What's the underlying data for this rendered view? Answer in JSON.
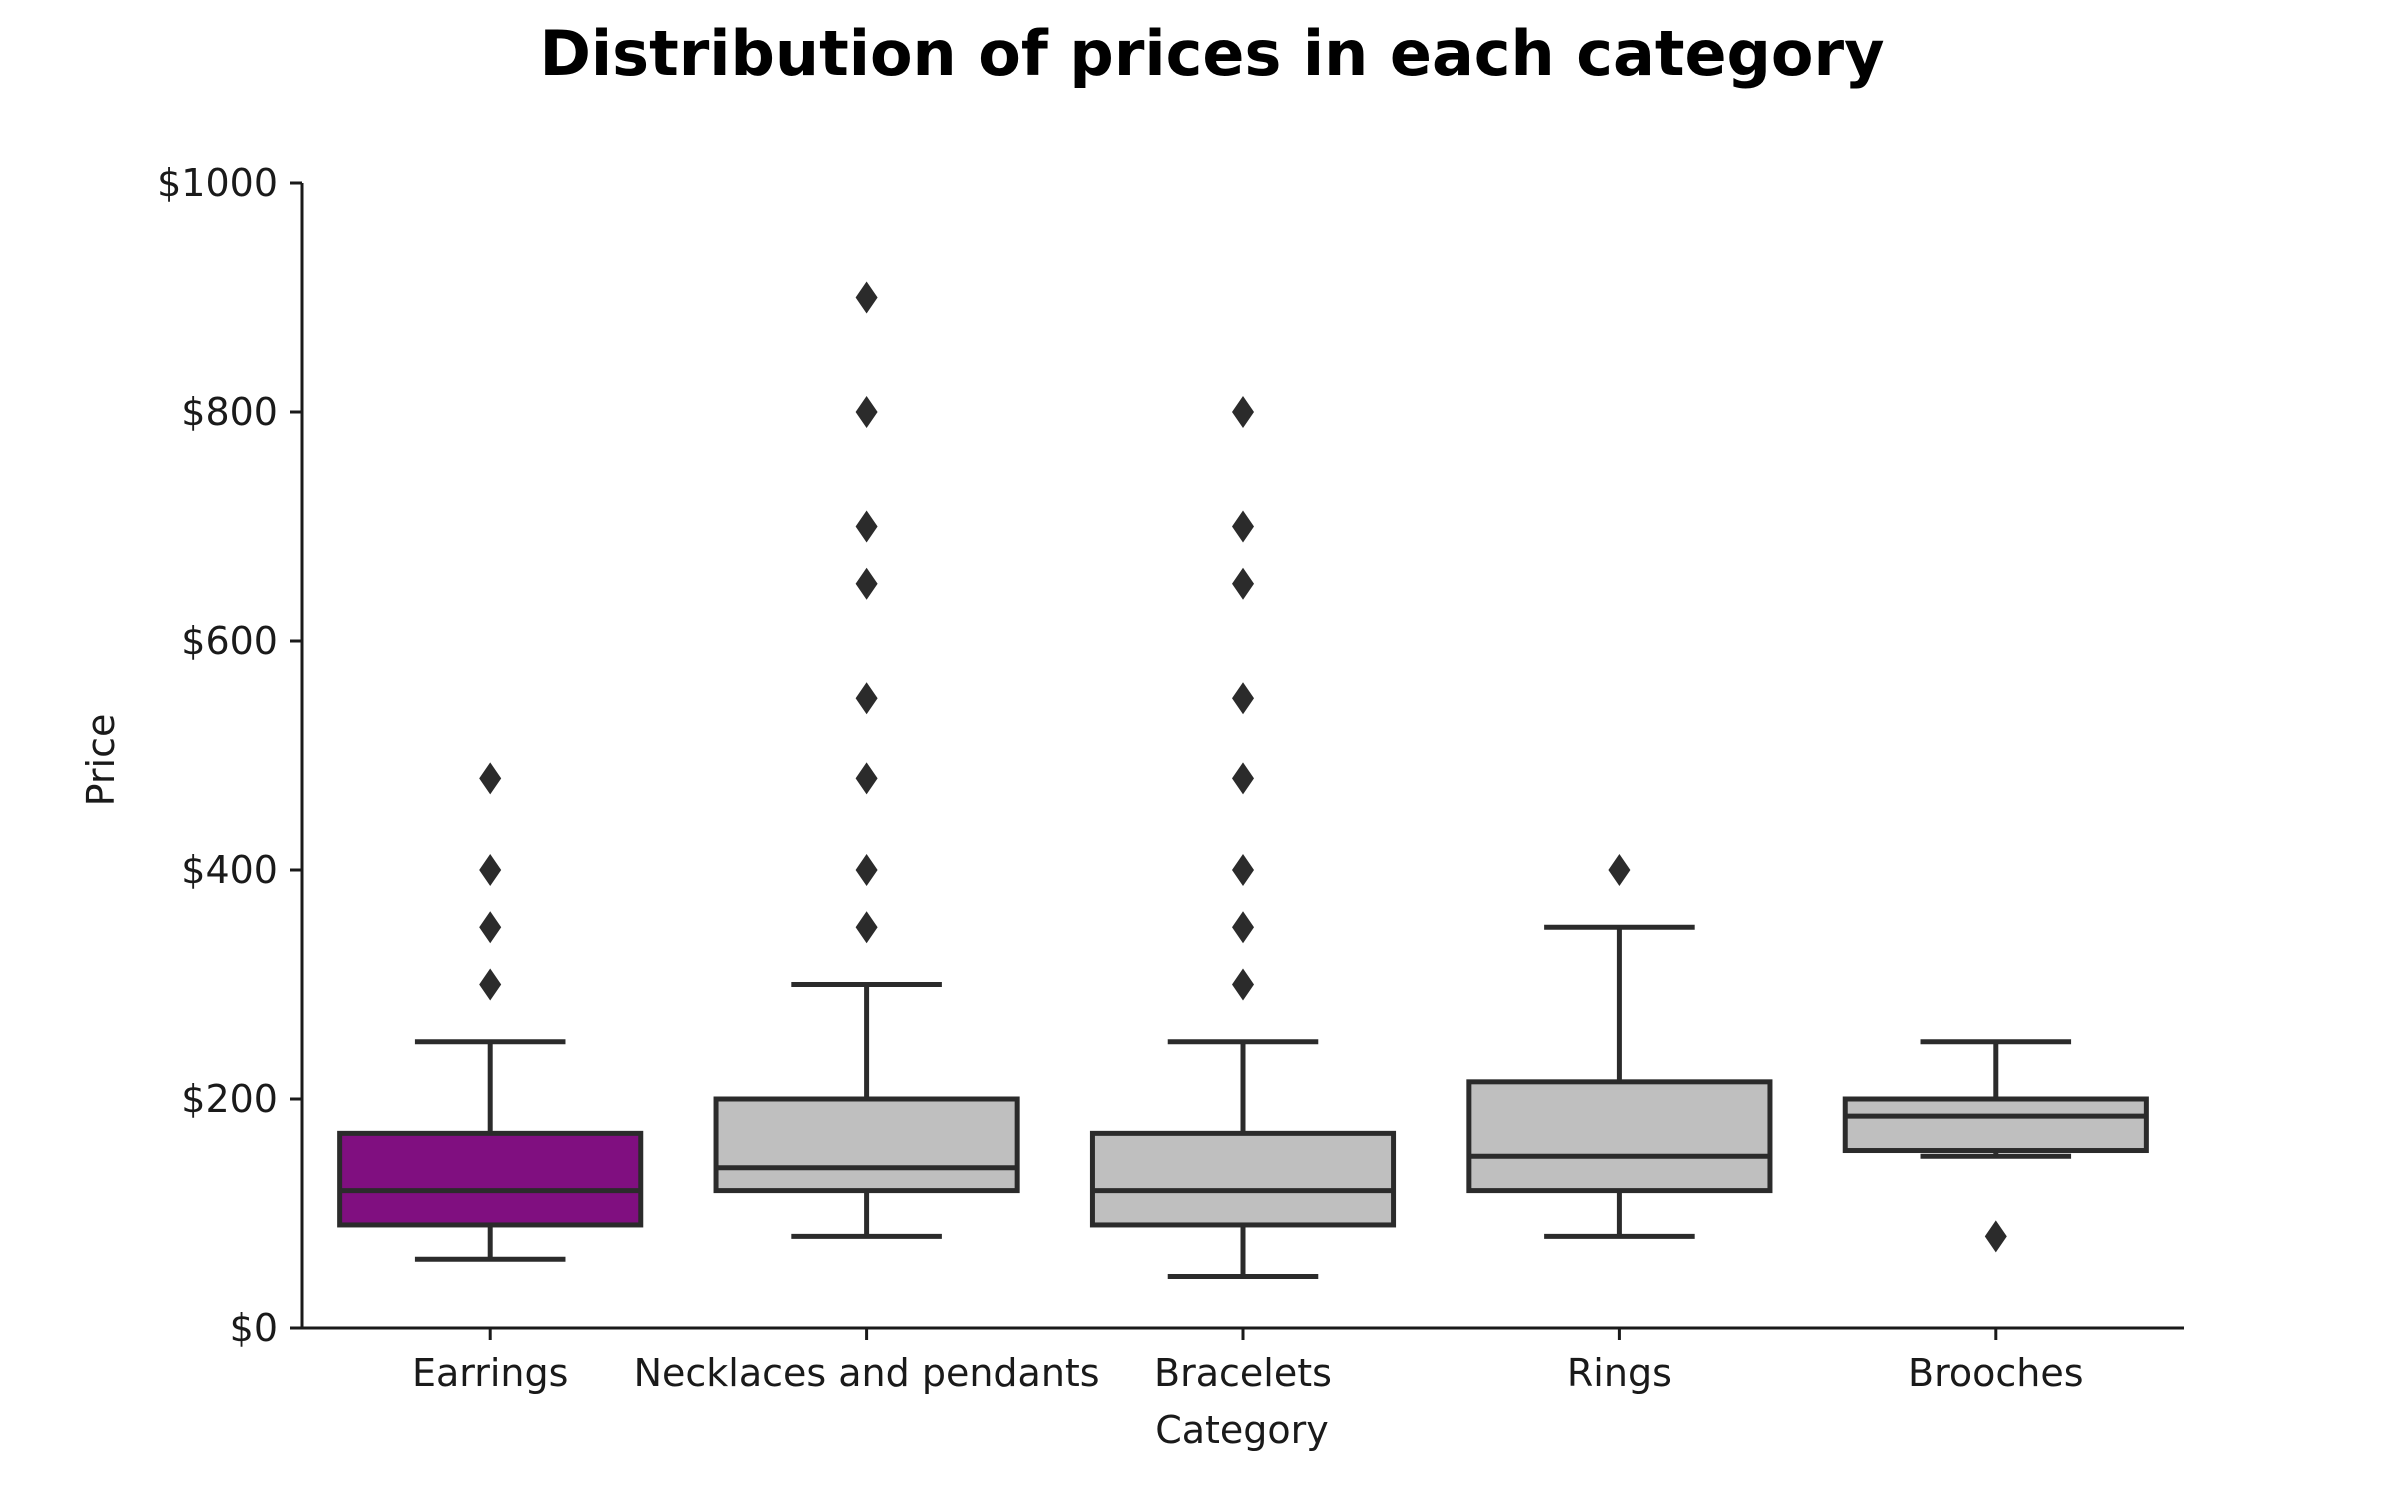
{
  "chart_data": {
    "type": "box",
    "title": "Distribution of prices in each category",
    "xlabel": "Category",
    "ylabel": "Price",
    "ylim": [
      0,
      1000
    ],
    "y_ticks": [
      0,
      200,
      400,
      600,
      800,
      1000
    ],
    "y_tick_labels": [
      "$0",
      "$200",
      "$400",
      "$600",
      "$800",
      "$1000"
    ],
    "grid": false,
    "legend": "none",
    "highlight_color": "#800f80",
    "box_color": "#bfbfbf",
    "line_color": "#2b2b2b",
    "categories": [
      "Earrings",
      "Necklaces and pendants",
      "Bracelets",
      "Rings",
      "Brooches"
    ],
    "boxes": [
      {
        "category": "Earrings",
        "whisker_low": 60,
        "q1": 90,
        "median": 120,
        "q3": 170,
        "whisker_high": 250,
        "outliers": [
          300,
          350,
          400,
          480
        ],
        "highlighted": true
      },
      {
        "category": "Necklaces and pendants",
        "whisker_low": 80,
        "q1": 120,
        "median": 140,
        "q3": 200,
        "whisker_high": 300,
        "outliers": [
          350,
          400,
          480,
          550,
          650,
          700,
          800,
          900
        ],
        "highlighted": false
      },
      {
        "category": "Bracelets",
        "whisker_low": 45,
        "q1": 90,
        "median": 120,
        "q3": 170,
        "whisker_high": 250,
        "outliers": [
          300,
          350,
          400,
          480,
          550,
          650,
          700,
          800
        ],
        "highlighted": false
      },
      {
        "category": "Rings",
        "whisker_low": 80,
        "q1": 120,
        "median": 150,
        "q3": 215,
        "whisker_high": 350,
        "outliers": [
          400
        ],
        "highlighted": false
      },
      {
        "category": "Brooches",
        "whisker_low": 150,
        "q1": 155,
        "median": 185,
        "q3": 200,
        "whisker_high": 250,
        "outliers": [
          80
        ],
        "highlighted": false
      }
    ]
  }
}
